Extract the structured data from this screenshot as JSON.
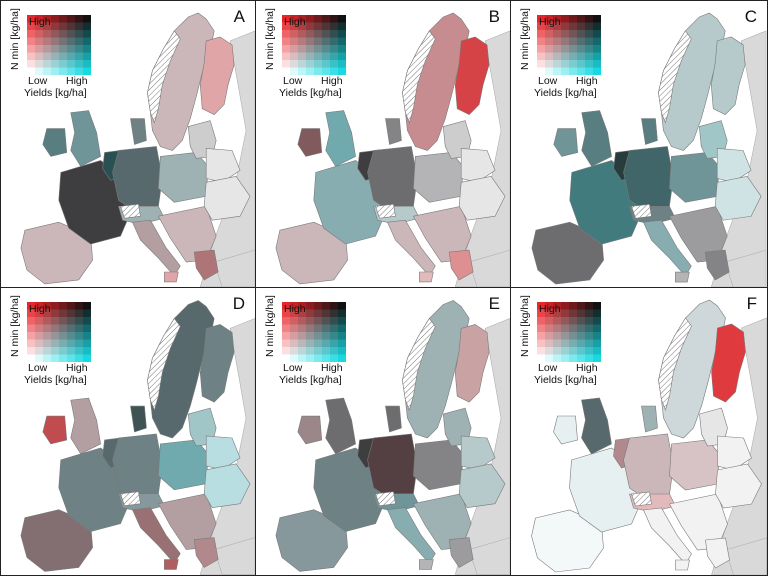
{
  "legend": {
    "y_label": "N min [kg/ha]",
    "x_label": "Yields [kg/ha]",
    "y_high": "High",
    "low": "Low",
    "x_high": "High"
  },
  "colors": {
    "low_low": "#ffffff",
    "high_n": "#e8252a",
    "high_yield": "#19d9e0",
    "high_high": "#111111",
    "non_eu_land": "#d9d9d9",
    "border": "#7a7a7a"
  },
  "panels": [
    {
      "letter": "A"
    },
    {
      "letter": "B"
    },
    {
      "letter": "C"
    },
    {
      "letter": "D"
    },
    {
      "letter": "E"
    },
    {
      "letter": "F"
    }
  ]
}
